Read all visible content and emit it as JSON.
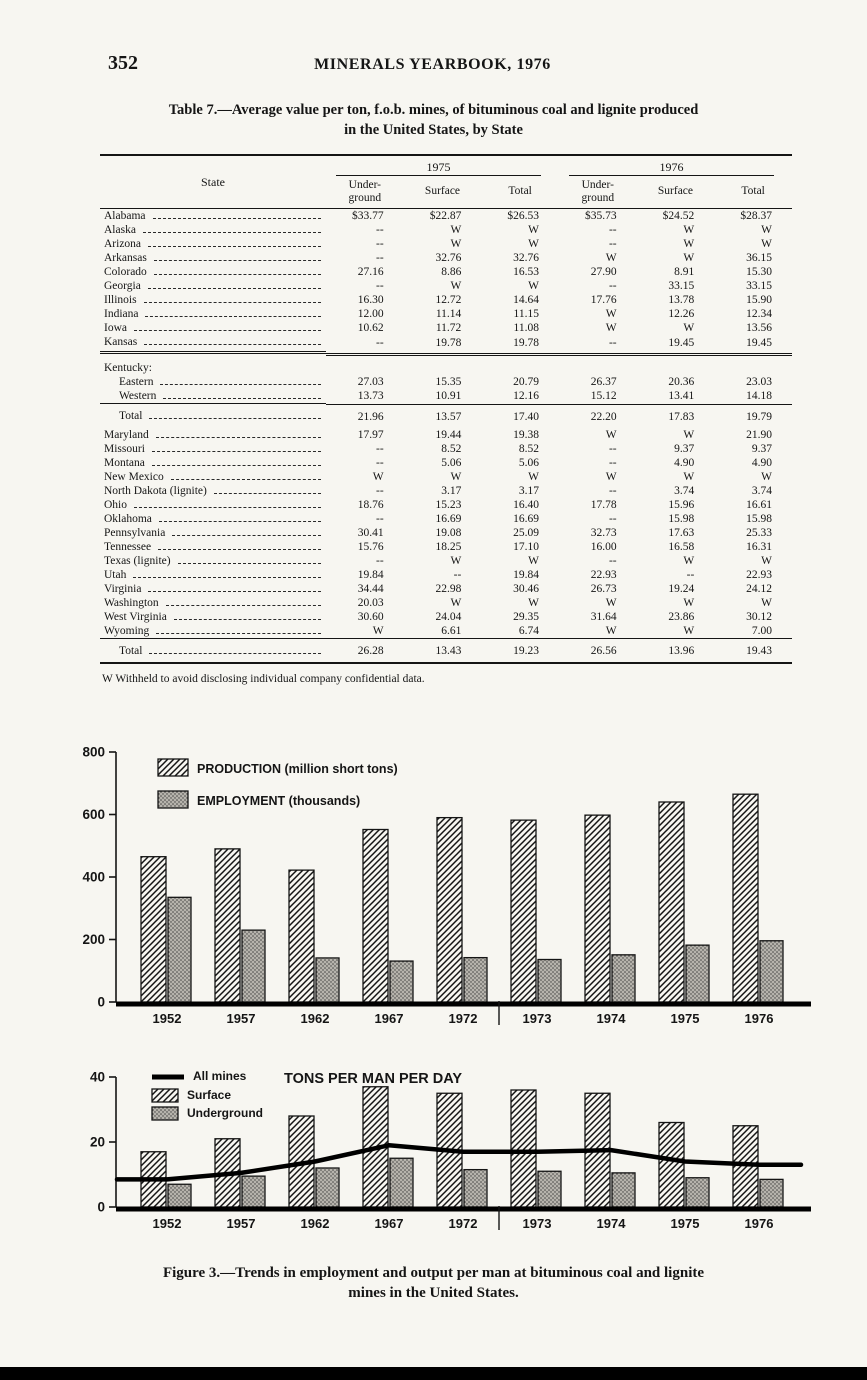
{
  "page": {
    "page_number": "352",
    "header_title": "MINERALS YEARBOOK, 1976"
  },
  "colors": {
    "ink": "#151515",
    "paper": "#f7f6f1",
    "bar_gray": "#b6b3ac"
  },
  "table": {
    "title_line1": "Table 7.—Average value per ton, f.o.b. mines, of bituminous coal and lignite produced",
    "title_line2": "in the United States, by State",
    "state_header": "State",
    "year_groups": [
      "1975",
      "1976"
    ],
    "sub_headers": [
      "Under-ground",
      "Surface",
      "Total",
      "Under-ground",
      "Surface",
      "Total"
    ],
    "rows": [
      {
        "name": "Alabama",
        "cls": "",
        "values": [
          "$33.77",
          "$22.87",
          "$26.53",
          "$35.73",
          "$24.52",
          "$28.37"
        ]
      },
      {
        "name": "Alaska",
        "cls": "",
        "values": [
          "--",
          "W",
          "W",
          "--",
          "W",
          "W"
        ]
      },
      {
        "name": "Arizona",
        "cls": "",
        "values": [
          "--",
          "W",
          "W",
          "--",
          "W",
          "W"
        ]
      },
      {
        "name": "Arkansas",
        "cls": "",
        "values": [
          "--",
          "32.76",
          "32.76",
          "W",
          "W",
          "36.15"
        ]
      },
      {
        "name": "Colorado",
        "cls": "",
        "values": [
          "27.16",
          "8.86",
          "16.53",
          "27.90",
          "8.91",
          "15.30"
        ]
      },
      {
        "name": "Georgia",
        "cls": "",
        "values": [
          "--",
          "W",
          "W",
          "--",
          "33.15",
          "33.15"
        ]
      },
      {
        "name": "Illinois",
        "cls": "",
        "values": [
          "16.30",
          "12.72",
          "14.64",
          "17.76",
          "13.78",
          "15.90"
        ]
      },
      {
        "name": "Indiana",
        "cls": "",
        "values": [
          "12.00",
          "11.14",
          "11.15",
          "W",
          "12.26",
          "12.34"
        ]
      },
      {
        "name": "Iowa",
        "cls": "",
        "values": [
          "10.62",
          "11.72",
          "11.08",
          "W",
          "W",
          "13.56"
        ]
      },
      {
        "name": "Kansas",
        "cls": "rule-double-after",
        "values": [
          "--",
          "19.78",
          "19.78",
          "--",
          "19.45",
          "19.45"
        ]
      },
      {
        "name": "Kentucky:",
        "cls": "section",
        "values": null
      },
      {
        "name": "Eastern",
        "cls": "indent",
        "values": [
          "27.03",
          "15.35",
          "20.79",
          "26.37",
          "20.36",
          "23.03"
        ]
      },
      {
        "name": "Western",
        "cls": "indent rule-after",
        "values": [
          "13.73",
          "10.91",
          "12.16",
          "15.12",
          "13.41",
          "14.18"
        ]
      },
      {
        "name": "Total",
        "cls": "indent pad-tb",
        "values": [
          "21.96",
          "13.57",
          "17.40",
          "22.20",
          "17.83",
          "19.79"
        ]
      },
      {
        "name": "Maryland",
        "cls": "",
        "values": [
          "17.97",
          "19.44",
          "19.38",
          "W",
          "W",
          "21.90"
        ]
      },
      {
        "name": "Missouri",
        "cls": "",
        "values": [
          "--",
          "8.52",
          "8.52",
          "--",
          "9.37",
          "9.37"
        ]
      },
      {
        "name": "Montana",
        "cls": "",
        "values": [
          "--",
          "5.06",
          "5.06",
          "--",
          "4.90",
          "4.90"
        ]
      },
      {
        "name": "New Mexico",
        "cls": "",
        "values": [
          "W",
          "W",
          "W",
          "W",
          "W",
          "W"
        ]
      },
      {
        "name": "North Dakota (lignite)",
        "cls": "",
        "values": [
          "--",
          "3.17",
          "3.17",
          "--",
          "3.74",
          "3.74"
        ]
      },
      {
        "name": "Ohio",
        "cls": "",
        "values": [
          "18.76",
          "15.23",
          "16.40",
          "17.78",
          "15.96",
          "16.61"
        ]
      },
      {
        "name": "Oklahoma",
        "cls": "",
        "values": [
          "--",
          "16.69",
          "16.69",
          "--",
          "15.98",
          "15.98"
        ]
      },
      {
        "name": "Pennsylvania",
        "cls": "",
        "values": [
          "30.41",
          "19.08",
          "25.09",
          "32.73",
          "17.63",
          "25.33"
        ]
      },
      {
        "name": "Tennessee",
        "cls": "",
        "values": [
          "15.76",
          "18.25",
          "17.10",
          "16.00",
          "16.58",
          "16.31"
        ]
      },
      {
        "name": "Texas (lignite)",
        "cls": "",
        "values": [
          "--",
          "W",
          "W",
          "--",
          "W",
          "W"
        ]
      },
      {
        "name": "Utah",
        "cls": "",
        "values": [
          "19.84",
          "--",
          "19.84",
          "22.93",
          "--",
          "22.93"
        ]
      },
      {
        "name": "Virginia",
        "cls": "",
        "values": [
          "34.44",
          "22.98",
          "30.46",
          "26.73",
          "19.24",
          "24.12"
        ]
      },
      {
        "name": "Washington",
        "cls": "",
        "values": [
          "20.03",
          "W",
          "W",
          "W",
          "W",
          "W"
        ]
      },
      {
        "name": "West Virginia",
        "cls": "",
        "values": [
          "30.60",
          "24.04",
          "29.35",
          "31.64",
          "23.86",
          "30.12"
        ]
      },
      {
        "name": "Wyoming",
        "cls": "rule-after",
        "values": [
          "W",
          "6.61",
          "6.74",
          "W",
          "W",
          "7.00"
        ]
      },
      {
        "name": "Total",
        "cls": "indent pad-tb",
        "values": [
          "26.28",
          "13.43",
          "19.23",
          "26.56",
          "13.96",
          "19.43"
        ]
      }
    ],
    "footnote": "W Withheld to avoid disclosing individual company confidential data."
  },
  "figure": {
    "caption_line1": "Figure 3.—Trends in employment and output per man at bituminous coal and lignite",
    "caption_line2": "mines in the United States."
  },
  "chart_data": [
    {
      "type": "bar",
      "title": "",
      "categories": [
        "1952",
        "1957",
        "1962",
        "1967",
        "1972",
        "1973",
        "1974",
        "1975",
        "1976"
      ],
      "series": [
        {
          "name": "PRODUCTION (million short tons)",
          "type": "bar",
          "pattern": "hatch",
          "values": [
            465,
            490,
            422,
            552,
            590,
            582,
            598,
            640,
            665
          ]
        },
        {
          "name": "EMPLOYMENT (thousands)",
          "type": "bar",
          "pattern": "stipple",
          "values": [
            335,
            230,
            141,
            131,
            142,
            136,
            151,
            182,
            196
          ]
        }
      ],
      "ylim": [
        0,
        800
      ],
      "yticks": [
        0,
        200,
        400,
        600,
        800
      ],
      "legend_position": "upper-left",
      "grid": false
    },
    {
      "type": "bar+line",
      "title": "TONS PER MAN PER DAY",
      "categories": [
        "1952",
        "1957",
        "1962",
        "1967",
        "1972",
        "1973",
        "1974",
        "1975",
        "1976"
      ],
      "series": [
        {
          "name": "All mines",
          "type": "line",
          "values": [
            8.5,
            10.5,
            14,
            19,
            17,
            17,
            17.5,
            14,
            13
          ]
        },
        {
          "name": "Surface",
          "type": "bar",
          "pattern": "hatch",
          "values": [
            17,
            21,
            28,
            37,
            35,
            36,
            35,
            26,
            25
          ]
        },
        {
          "name": "Underground",
          "type": "bar",
          "pattern": "stipple",
          "values": [
            7,
            9.5,
            12,
            15,
            11.5,
            11,
            10.5,
            9,
            8.5
          ]
        }
      ],
      "ylim": [
        0,
        40
      ],
      "yticks": [
        0,
        20,
        40
      ],
      "legend_position": "upper-left",
      "grid": false
    }
  ]
}
